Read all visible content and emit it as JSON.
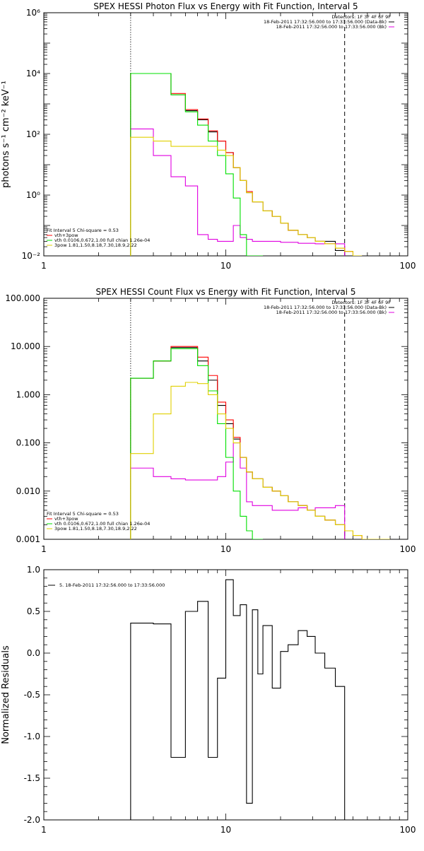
{
  "chart_data": [
    {
      "type": "line",
      "step": true,
      "title": "SPEX HESSI Photon Flux vs Energy with Fit Function, Interval 5",
      "ylabel": "photons s⁻¹ cm⁻² keV⁻¹",
      "xlabel": "",
      "xscale": "log",
      "yscale": "log",
      "xlim": [
        1,
        100
      ],
      "ylim": [
        0.01,
        1000000
      ],
      "x_ticks": [
        1,
        10,
        100
      ],
      "x_tick_labels": [
        "1",
        "10",
        "100"
      ],
      "y_ticks": [
        0.01,
        1,
        100,
        10000,
        1000000
      ],
      "y_tick_labels": [
        "10⁻²",
        "10⁰",
        "10²",
        "10⁴",
        "10⁶"
      ],
      "vlines": [
        {
          "x": 3,
          "style": "dotted"
        },
        {
          "x": 45,
          "style": "dashed"
        }
      ],
      "legend_top_right": [
        "Detectors: 1F 3F 4F 6F 9F",
        "18-Feb-2011 17:32:56.000 to 17:33:56.000 (Data-Bk)",
        "18-Feb-2011 17:32:56.000 to 17:33:56.000 (Bk)"
      ],
      "legend_bottom_left": {
        "header": "Fit Interval 5    Chi-square = 0.53",
        "entries": [
          "vth+3pow",
          "vth 0.0106,0.672,1.00  full chian 1.26e-04",
          "3pow 1.81,1.50,8.18,7.30,18.9,2.22"
        ]
      },
      "edges": [
        3,
        4,
        5,
        6,
        7,
        8,
        9,
        10,
        11,
        12,
        13,
        14,
        16,
        18,
        20,
        22,
        25,
        28,
        31,
        35,
        40,
        45,
        50,
        56
      ],
      "series": [
        {
          "name": "Data-Bk",
          "color": "#000000",
          "values": [
            10000,
            10000,
            2000,
            600,
            300,
            120,
            60,
            25,
            8,
            3,
            1.2,
            0.6,
            0.3,
            0.2,
            0.12,
            0.07,
            0.05,
            0.04,
            0.03,
            0.03,
            0.015,
            null,
            null
          ]
        },
        {
          "name": "Bk",
          "color": "#e000e0",
          "values": [
            150,
            20,
            4,
            2,
            0.05,
            0.035,
            0.03,
            0.03,
            0.1,
            0.04,
            0.035,
            0.03,
            0.03,
            0.03,
            0.028,
            0.028,
            0.026,
            0.026,
            0.025,
            0.025,
            0.025,
            null,
            null
          ]
        },
        {
          "name": "vth+3pow",
          "color": "#ff0000",
          "values": [
            10000,
            10000,
            2200,
            650,
            320,
            130,
            60,
            25,
            8,
            3,
            1.3,
            0.6,
            0.3,
            0.2,
            0.12,
            0.07,
            0.05,
            0.04,
            0.03,
            0.025,
            0.018,
            0.014,
            0.01
          ]
        },
        {
          "name": "vth 0.0106,0.672,1.00  full chian 1.26e-04",
          "color": "#00e000",
          "values": [
            10000,
            10000,
            2000,
            550,
            200,
            60,
            20,
            5,
            0.8,
            0.05,
            0.01,
            0.005,
            null,
            null,
            null,
            null,
            null,
            null,
            null,
            null,
            null,
            null,
            null
          ]
        },
        {
          "name": "3pow 1.81,1.50,8.18,7.30,18.9,2.22",
          "color": "#e0d000",
          "values": [
            80,
            60,
            40,
            40,
            40,
            40,
            30,
            20,
            8,
            3,
            1.2,
            0.6,
            0.3,
            0.2,
            0.12,
            0.07,
            0.05,
            0.04,
            0.03,
            0.025,
            0.018,
            0.014,
            0.01
          ]
        }
      ]
    },
    {
      "type": "line",
      "step": true,
      "title": "SPEX HESSI Count Flux vs Energy with Fit Function, Interval 5",
      "ylabel": "",
      "xlabel": "",
      "xscale": "log",
      "yscale": "log",
      "xlim": [
        1,
        100
      ],
      "ylim": [
        0.001,
        100
      ],
      "x_ticks": [
        1,
        10,
        100
      ],
      "x_tick_labels": [
        "1",
        "10",
        "100"
      ],
      "y_ticks": [
        0.001,
        0.01,
        0.1,
        1,
        10,
        100
      ],
      "y_tick_labels": [
        "0.001",
        "0.010",
        "0.100",
        "1.000",
        "10.000",
        "100.000"
      ],
      "vlines": [
        {
          "x": 3,
          "style": "dotted"
        },
        {
          "x": 45,
          "style": "dashed"
        }
      ],
      "legend_top_right": [
        "Detectors: 1F 3F 4F 6F 9F",
        "18-Feb-2011 17:32:56.000 to 17:33:56.000 (Data-Bk)",
        "18-Feb-2011 17:32:56.000 to 17:33:56.000 (Bk)"
      ],
      "legend_bottom_left": {
        "header": "Fit Interval 5    Chi-square = 0.53",
        "entries": [
          "vth+3pow",
          "vth 0.0106,0.672,1.00  full chian 1.26e-04",
          "3pow 1.81,1.50,8.18,7.30,18.9,2.22"
        ]
      },
      "edges": [
        3,
        4,
        5,
        6,
        7,
        8,
        9,
        10,
        11,
        12,
        13,
        14,
        16,
        18,
        20,
        22,
        25,
        28,
        31,
        35,
        40,
        45,
        50,
        56,
        63,
        70,
        80
      ],
      "series": [
        {
          "name": "Data-Bk",
          "color": "#000000",
          "values": [
            2.2,
            5,
            9.5,
            9.5,
            5,
            2,
            0.6,
            0.25,
            0.12,
            0.05,
            0.025,
            0.018,
            0.012,
            0.01,
            0.008,
            0.006,
            0.005,
            0.004,
            0.003,
            0.0025,
            0.002,
            null,
            null,
            null,
            null,
            null
          ]
        },
        {
          "name": "Bk",
          "color": "#e000e0",
          "values": [
            0.03,
            0.02,
            0.018,
            0.017,
            0.017,
            0.017,
            0.02,
            0.04,
            0.1,
            0.03,
            0.006,
            0.005,
            0.005,
            0.004,
            0.004,
            0.004,
            0.0045,
            0.004,
            0.0045,
            0.0045,
            0.005,
            null,
            null,
            null,
            null,
            null
          ]
        },
        {
          "name": "vth+3pow",
          "color": "#ff0000",
          "values": [
            2.2,
            5,
            10,
            10,
            6,
            2.5,
            0.7,
            0.3,
            0.13,
            0.05,
            0.025,
            0.018,
            0.012,
            0.01,
            0.008,
            0.006,
            0.005,
            0.004,
            0.003,
            0.0025,
            0.002,
            0.0015,
            0.0012,
            0.001,
            0.0008,
            0.0006
          ]
        },
        {
          "name": "vth 0.0106,0.672,1.00  full chian 1.26e-04",
          "color": "#00e000",
          "values": [
            2.2,
            5,
            9,
            9,
            4,
            1.2,
            0.25,
            0.05,
            0.01,
            0.003,
            0.0015,
            0.001,
            null,
            null,
            null,
            null,
            null,
            null,
            null,
            null,
            null,
            null,
            null,
            null,
            null,
            null
          ]
        },
        {
          "name": "3pow 1.81,1.50,8.18,7.30,18.9,2.22",
          "color": "#e0d000",
          "values": [
            0.06,
            0.4,
            1.5,
            1.8,
            1.7,
            1,
            0.4,
            0.2,
            0.1,
            0.05,
            0.025,
            0.018,
            0.012,
            0.01,
            0.008,
            0.006,
            0.005,
            0.004,
            0.003,
            0.0025,
            0.002,
            0.0015,
            0.0012,
            0.001,
            0.0008,
            0.0006
          ]
        }
      ]
    },
    {
      "type": "line",
      "step": true,
      "title": "",
      "ylabel": "Normalized Residuals",
      "xlabel": "",
      "xscale": "log",
      "yscale": "linear",
      "xlim": [
        1,
        100
      ],
      "ylim": [
        -2.0,
        1.0
      ],
      "x_ticks": [
        1,
        10,
        100
      ],
      "x_tick_labels": [
        "1",
        "10",
        "100"
      ],
      "y_ticks": [
        1.0,
        0.5,
        0.0,
        -0.5,
        -1.0,
        -1.5,
        -2.0
      ],
      "y_tick_labels": [
        "1.0",
        "0.5",
        "0.0",
        "-0.5",
        "-1.0",
        "-1.5",
        "-2.0"
      ],
      "legend_top_left": "5. 18-Feb-2011 17:32:56.000 to 17:33:56.000",
      "edges": [
        3,
        4,
        5,
        6,
        7,
        8,
        9,
        10,
        11,
        12,
        13,
        14,
        15,
        16,
        18,
        20,
        22,
        25,
        28,
        31,
        35,
        40,
        45
      ],
      "series": [
        {
          "name": "5. 18-Feb-2011 17:32:56.000 to 17:33:56.000",
          "color": "#000000",
          "values": [
            0.36,
            0.35,
            -1.25,
            0.5,
            0.62,
            -1.25,
            -0.3,
            0.88,
            0.45,
            0.58,
            -1.8,
            0.52,
            -0.25,
            0.33,
            -0.42,
            0.02,
            0.1,
            0.27,
            0.2,
            0.0,
            -0.18,
            -0.4
          ]
        }
      ]
    }
  ]
}
